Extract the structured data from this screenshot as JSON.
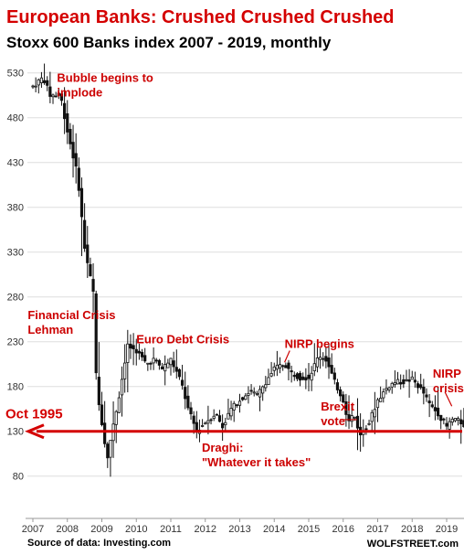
{
  "chart_data": {
    "type": "candlestick",
    "title": "European Banks: Crushed Crushed Crushed",
    "subtitle": "Stoxx 600 Banks index 2007 - 2019, monthly",
    "x_range": [
      2007.0,
      2019.6
    ],
    "ylim": [
      75,
      545
    ],
    "y_ticks": [
      530,
      480,
      430,
      380,
      330,
      280,
      230,
      180,
      130,
      80
    ],
    "x_ticks": [
      "2007",
      "2008",
      "2009",
      "2010",
      "2011",
      "2012",
      "2013",
      "2014",
      "2015",
      "2016",
      "2017",
      "2018",
      "2019"
    ],
    "grid": true,
    "series": [
      {
        "values": [
          {
            "t": 2007.0,
            "v": 515
          },
          {
            "t": 2007.3,
            "v": 525
          },
          {
            "t": 2007.5,
            "v": 505
          },
          {
            "t": 2007.8,
            "v": 505
          },
          {
            "t": 2008.0,
            "v": 465
          },
          {
            "t": 2008.3,
            "v": 415
          },
          {
            "t": 2008.5,
            "v": 335
          },
          {
            "t": 2008.75,
            "v": 285
          },
          {
            "t": 2008.85,
            "v": 175
          },
          {
            "t": 2009.0,
            "v": 140
          },
          {
            "t": 2009.15,
            "v": 100
          },
          {
            "t": 2009.3,
            "v": 130
          },
          {
            "t": 2009.5,
            "v": 170
          },
          {
            "t": 2009.75,
            "v": 225
          },
          {
            "t": 2010.0,
            "v": 220
          },
          {
            "t": 2010.3,
            "v": 205
          },
          {
            "t": 2010.5,
            "v": 210
          },
          {
            "t": 2010.75,
            "v": 200
          },
          {
            "t": 2011.0,
            "v": 210
          },
          {
            "t": 2011.3,
            "v": 185
          },
          {
            "t": 2011.5,
            "v": 155
          },
          {
            "t": 2011.75,
            "v": 130
          },
          {
            "t": 2012.0,
            "v": 140
          },
          {
            "t": 2012.3,
            "v": 150
          },
          {
            "t": 2012.5,
            "v": 135
          },
          {
            "t": 2012.75,
            "v": 155
          },
          {
            "t": 2013.0,
            "v": 165
          },
          {
            "t": 2013.3,
            "v": 175
          },
          {
            "t": 2013.5,
            "v": 170
          },
          {
            "t": 2013.75,
            "v": 185
          },
          {
            "t": 2014.0,
            "v": 200
          },
          {
            "t": 2014.3,
            "v": 205
          },
          {
            "t": 2014.5,
            "v": 195
          },
          {
            "t": 2014.75,
            "v": 190
          },
          {
            "t": 2015.0,
            "v": 190
          },
          {
            "t": 2015.3,
            "v": 215
          },
          {
            "t": 2015.5,
            "v": 210
          },
          {
            "t": 2015.75,
            "v": 185
          },
          {
            "t": 2016.0,
            "v": 165
          },
          {
            "t": 2016.15,
            "v": 140
          },
          {
            "t": 2016.3,
            "v": 150
          },
          {
            "t": 2016.5,
            "v": 125
          },
          {
            "t": 2016.75,
            "v": 140
          },
          {
            "t": 2017.0,
            "v": 165
          },
          {
            "t": 2017.3,
            "v": 180
          },
          {
            "t": 2017.5,
            "v": 185
          },
          {
            "t": 2017.75,
            "v": 185
          },
          {
            "t": 2018.0,
            "v": 188
          },
          {
            "t": 2018.3,
            "v": 175
          },
          {
            "t": 2018.5,
            "v": 160
          },
          {
            "t": 2018.75,
            "v": 150
          },
          {
            "t": 2019.0,
            "v": 135
          },
          {
            "t": 2019.2,
            "v": 145
          },
          {
            "t": 2019.4,
            "v": 140
          },
          {
            "t": 2019.6,
            "v": 135
          }
        ]
      }
    ],
    "reference_line": {
      "label": "Oct 1995",
      "value": 130
    },
    "annotations": [
      {
        "id": "bubble",
        "lines": [
          "Bubble begins to",
          "implode"
        ],
        "x": 2007.7,
        "y": 520
      },
      {
        "id": "lehman",
        "lines": [
          "Financial Crisis",
          "Lehman"
        ],
        "x": 2006.85,
        "y": 255
      },
      {
        "id": "euro",
        "lines": [
          "Euro Debt Crisis"
        ],
        "x": 2010.0,
        "y": 228
      },
      {
        "id": "nirp-begins",
        "lines": [
          "NIRP begins"
        ],
        "x": 2014.3,
        "y": 223
      },
      {
        "id": "nirp-crisis",
        "lines": [
          "NIRP",
          "crisis?"
        ],
        "x": 2018.6,
        "y": 190
      },
      {
        "id": "brexit",
        "lines": [
          "Brexit",
          "vote"
        ],
        "x": 2015.35,
        "y": 153
      },
      {
        "id": "draghi",
        "lines": [
          "Draghi:",
          "\"Whatever it takes\""
        ],
        "x": 2011.9,
        "y": 107
      }
    ],
    "source": "Source of data: Investing.com",
    "credit": "WOLFSTREET.com",
    "colors": {
      "title": "#d40000",
      "annotation": "#cc0000",
      "reference": "#d40000",
      "candle": "#111111",
      "grid": "#dddddd"
    }
  }
}
